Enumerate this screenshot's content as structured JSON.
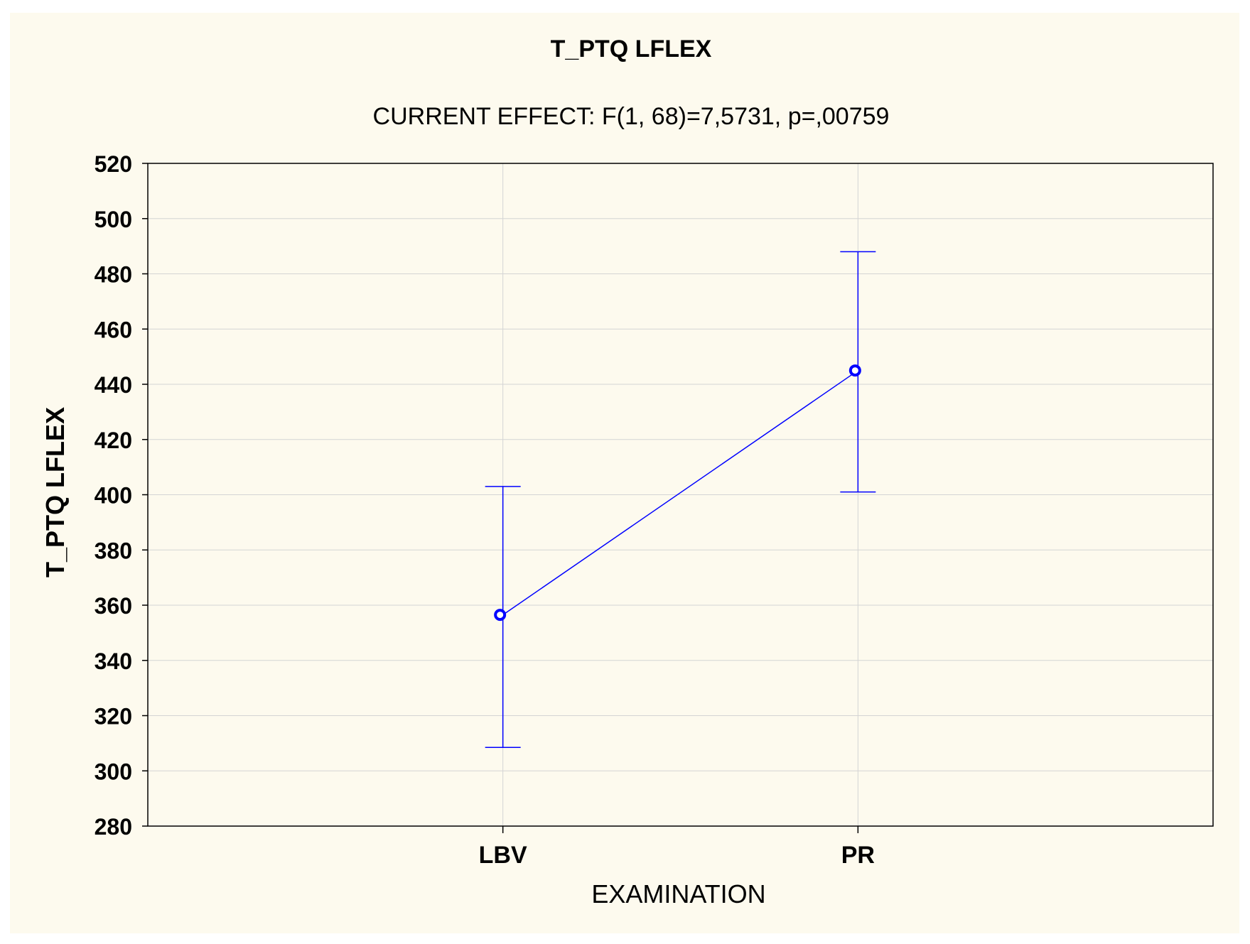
{
  "chart_data": {
    "type": "line",
    "title": "T_PTQ LFLEX",
    "subtitle": "CURRENT EFFECT: F(1, 68)=7,5731, p=,00759",
    "xlabel": "EXAMINATION",
    "ylabel": "T_PTQ LFLEX",
    "categories": [
      "LBV",
      "PR"
    ],
    "series": [
      {
        "values": [
          356.5,
          445
        ],
        "error_low": [
          308.5,
          401
        ],
        "error_high": [
          403,
          488
        ],
        "color": "#0000ff"
      }
    ],
    "ylim": [
      280,
      520
    ],
    "yticks": [
      280,
      300,
      320,
      340,
      360,
      380,
      400,
      420,
      440,
      460,
      480,
      500,
      520
    ],
    "grid": true,
    "background": "#fdfaee"
  }
}
